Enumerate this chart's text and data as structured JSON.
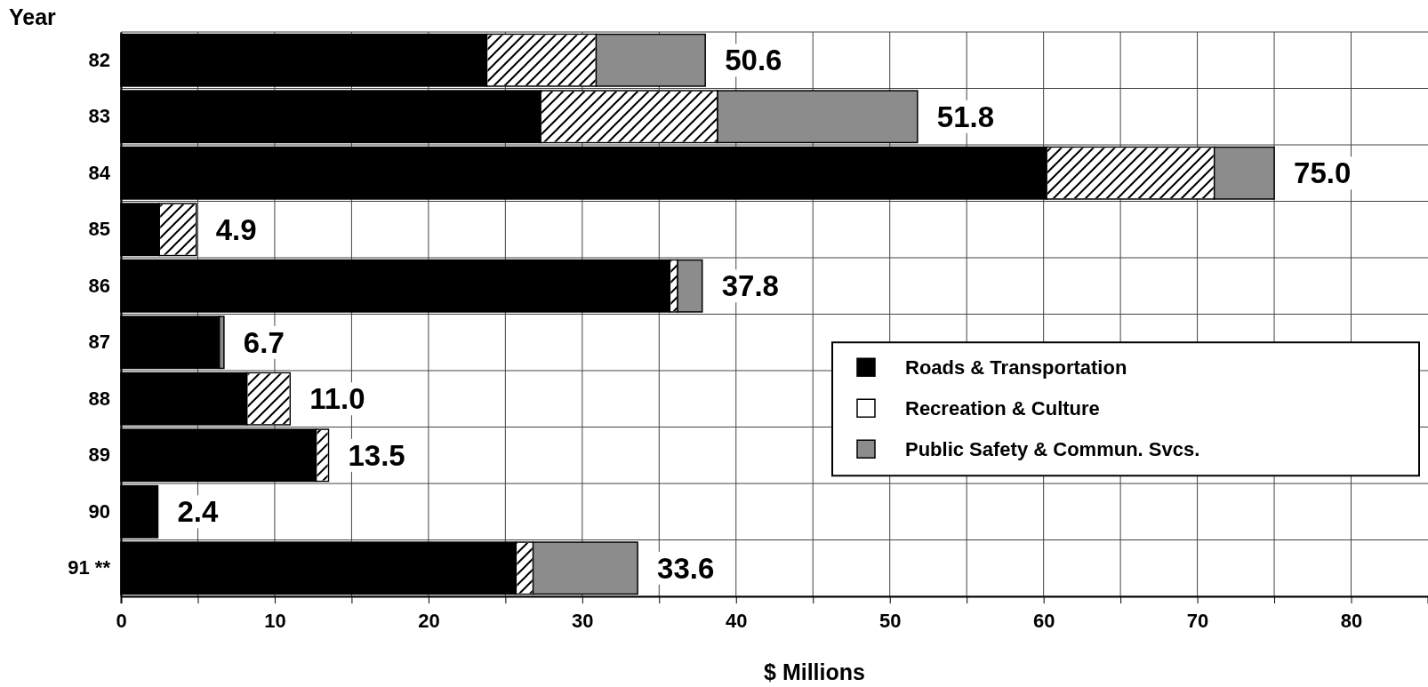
{
  "chart_data": {
    "type": "bar",
    "orientation": "horizontal",
    "stacked": true,
    "ylabel": "Year",
    "xlabel": "$ Millions",
    "categories": [
      "82",
      "83",
      "84",
      "85",
      "86",
      "87",
      "88",
      "89",
      "90",
      "91 **"
    ],
    "series": [
      {
        "name": "Roads & Transportation",
        "color": "#000000",
        "values": [
          23.8,
          27.3,
          60.2,
          2.5,
          35.7,
          6.4,
          8.2,
          12.7,
          2.4,
          25.7
        ]
      },
      {
        "name": "Recreation & Culture",
        "color": "#ffffff",
        "values": [
          7.1,
          11.5,
          10.9,
          2.4,
          0.5,
          null,
          2.8,
          0.8,
          null,
          1.1
        ]
      },
      {
        "name": "Public Safety & Commun. Svcs.",
        "color": "#8c8c8c",
        "values": [
          7.1,
          13.0,
          3.9,
          null,
          1.6,
          0.3,
          null,
          null,
          null,
          6.8
        ]
      }
    ],
    "annotations": [
      {
        "text": "50.6",
        "x": 38.0,
        "y": "82"
      },
      {
        "text": "51.8",
        "x": 51.8,
        "y": "83"
      },
      {
        "text": "75.0",
        "x": 75.0,
        "y": "84"
      },
      {
        "text": "4.9",
        "x": 4.9,
        "y": "85"
      },
      {
        "text": "37.8",
        "x": 37.8,
        "y": "86"
      },
      {
        "text": "6.7",
        "x": 6.7,
        "y": "87"
      },
      {
        "text": "11.0",
        "x": 11.0,
        "y": "88"
      },
      {
        "text": "13.5",
        "x": 13.5,
        "y": "89"
      },
      {
        "text": "2.4",
        "x": 2.4,
        "y": "90"
      },
      {
        "text": "33.6",
        "x": 33.6,
        "y": "91 **"
      }
    ],
    "xlim": [
      0,
      85
    ],
    "xticks": [
      0,
      {
        "value": 5,
        "label": null
      },
      10,
      {
        "value": 15,
        "label": null
      },
      20,
      {
        "value": 25,
        "label": null
      },
      30,
      {
        "value": 35,
        "label": null
      },
      40,
      {
        "value": 45,
        "label": null
      },
      50,
      {
        "value": 55,
        "label": null
      },
      60,
      {
        "value": 65,
        "label": null
      },
      70,
      {
        "value": 75,
        "label": null
      },
      80
    ],
    "grid": true,
    "legend": "right"
  }
}
